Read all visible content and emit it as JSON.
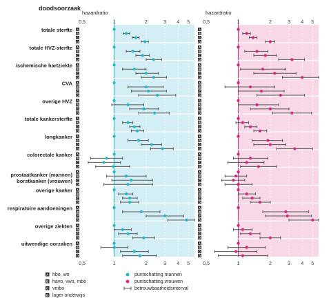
{
  "chart_data": {
    "type": "forest-plot",
    "row_header": "doodsoorzaak",
    "x_axis_label": "hazardratio",
    "x_scale": "log",
    "x_ticks": [
      "0,5",
      "1",
      "2",
      "3",
      "4",
      "5"
    ],
    "x_tick_values": [
      0.5,
      1,
      2,
      3,
      4,
      5
    ],
    "x_range": [
      0.47,
      5.7
    ],
    "reference_line": 1,
    "group_letters": [
      "A",
      "B",
      "C",
      "D"
    ],
    "panels": [
      {
        "name": "puntschatting mannen",
        "color": "#1fb8c9",
        "background": "#d4eef6"
      },
      {
        "name": "puntschatting vrouwen",
        "color": "#d8247c",
        "background": "#f8d7e6"
      }
    ],
    "ci_color": "#555555",
    "legend": {
      "groups": [
        {
          "letter": "A",
          "label": "hbo, wo"
        },
        {
          "letter": "B",
          "label": "havo, vwo, mbo"
        },
        {
          "letter": "C",
          "label": "vmbo"
        },
        {
          "letter": "D",
          "label": "lager onderwijs"
        }
      ],
      "marks": [
        {
          "kind": "dot-men",
          "label": "puntschatting mannen"
        },
        {
          "kind": "dot-women",
          "label": "puntschatting vrouwen"
        },
        {
          "kind": "interval",
          "label": "betrouwbaarheidsinterval"
        }
      ]
    },
    "categories": [
      {
        "label": "totale sterfte",
        "men": [
          [
            1,
            1,
            1
          ],
          [
            1.3,
            1.22,
            1.4
          ],
          [
            1.6,
            1.48,
            1.72
          ],
          [
            1.95,
            1.8,
            2.1
          ]
        ],
        "women": [
          [
            1,
            1,
            1
          ],
          [
            1.2,
            1.1,
            1.3
          ],
          [
            1.38,
            1.27,
            1.5
          ],
          [
            2.0,
            1.8,
            2.2
          ]
        ]
      },
      {
        "label": "totale HVZ-sterfte",
        "men": [
          [
            1,
            1,
            1
          ],
          [
            1.5,
            1.3,
            1.75
          ],
          [
            1.85,
            1.6,
            2.15
          ],
          [
            2.35,
            2.0,
            2.8
          ]
        ],
        "women": [
          [
            1,
            1,
            1
          ],
          [
            1.5,
            1.15,
            1.9
          ],
          [
            1.8,
            1.4,
            2.3
          ],
          [
            3.2,
            2.4,
            4.2
          ]
        ]
      },
      {
        "label": "ischemische hartziekte",
        "men": [
          [
            1,
            1,
            1
          ],
          [
            1.55,
            1.2,
            2.0
          ],
          [
            2.0,
            1.6,
            2.6
          ],
          [
            2.35,
            1.8,
            3.1
          ]
        ],
        "women": [
          [
            1,
            1,
            1
          ],
          [
            1.7,
            1.05,
            2.8
          ],
          [
            2.2,
            1.4,
            3.5
          ],
          [
            4.0,
            2.6,
            6.0
          ]
        ]
      },
      {
        "label": "CVA",
        "men": [
          [
            1,
            1,
            1
          ],
          [
            2.0,
            1.35,
            2.9
          ],
          [
            2.1,
            1.45,
            3.1
          ],
          [
            2.55,
            1.7,
            3.8
          ]
        ],
        "women": [
          [
            1,
            1,
            1
          ],
          [
            1.3,
            0.75,
            2.2
          ],
          [
            1.65,
            1.0,
            2.7
          ],
          [
            2.5,
            1.5,
            4.2
          ]
        ]
      },
      {
        "label": "overige HVZ",
        "men": [
          [
            1,
            1,
            1
          ],
          [
            1.35,
            0.95,
            1.9
          ],
          [
            1.9,
            1.4,
            2.6
          ],
          [
            2.4,
            1.7,
            3.3
          ]
        ],
        "women": [
          [
            1,
            1,
            1
          ],
          [
            1.5,
            1.0,
            2.4
          ],
          [
            2.0,
            1.3,
            3.0
          ],
          [
            3.2,
            2.1,
            4.9
          ]
        ]
      },
      {
        "label": "totale kankersterfte",
        "men": [
          [
            1,
            1,
            1
          ],
          [
            1.35,
            1.2,
            1.5
          ],
          [
            1.55,
            1.4,
            1.75
          ],
          [
            1.65,
            1.45,
            1.9
          ]
        ],
        "women": [
          [
            1,
            1,
            1
          ],
          [
            1.1,
            0.95,
            1.25
          ],
          [
            1.3,
            1.15,
            1.5
          ],
          [
            1.6,
            1.4,
            1.85
          ]
        ]
      },
      {
        "label": "longkanker",
        "men": [
          [
            1,
            1,
            1
          ],
          [
            1.7,
            1.35,
            2.1
          ],
          [
            2.25,
            1.8,
            2.8
          ],
          [
            2.85,
            2.2,
            3.6
          ]
        ],
        "women": [
          [
            1,
            1,
            1
          ],
          [
            1.9,
            1.35,
            2.6
          ],
          [
            2.0,
            1.4,
            2.8
          ],
          [
            3.4,
            2.3,
            5.0
          ]
        ]
      },
      {
        "label": "colorectale kanker",
        "men": [
          [
            1,
            1,
            1
          ],
          [
            0.85,
            0.6,
            1.2
          ],
          [
            0.8,
            0.57,
            1.15
          ],
          [
            0.98,
            0.67,
            1.4
          ]
        ],
        "women": [
          [
            1,
            1,
            1
          ],
          [
            1.3,
            0.9,
            1.9
          ],
          [
            1.2,
            0.8,
            1.75
          ],
          [
            1.55,
            1.05,
            2.3
          ]
        ]
      },
      {
        "label": "prostaatkanker (mannen)",
        "label2": "borstkanker (vrouwen)",
        "men": [
          [
            1,
            1,
            1
          ],
          [
            1.3,
            0.85,
            2.0
          ],
          [
            1.45,
            0.95,
            2.3
          ],
          [
            1.35,
            0.8,
            2.3
          ]
        ],
        "women": [
          [
            1,
            1,
            1
          ],
          [
            0.95,
            0.75,
            1.2
          ],
          [
            0.9,
            0.7,
            1.15
          ],
          [
            1.0,
            0.75,
            1.35
          ]
        ]
      },
      {
        "label": "overige kanker",
        "men": [
          [
            1,
            1,
            1
          ],
          [
            1.3,
            1.1,
            1.5
          ],
          [
            1.4,
            1.2,
            1.65
          ],
          [
            1.4,
            1.15,
            1.7
          ]
        ],
        "women": [
          [
            1,
            1,
            1
          ],
          [
            1.2,
            1.0,
            1.45
          ],
          [
            1.35,
            1.1,
            1.6
          ],
          [
            1.6,
            1.3,
            2.0
          ]
        ]
      },
      {
        "label": "respiratoire aandoeningen",
        "men": [
          [
            1,
            1,
            1
          ],
          [
            1.8,
            1.2,
            2.7
          ],
          [
            3.0,
            2.0,
            4.5
          ],
          [
            4.8,
            3.2,
            7.0
          ]
        ],
        "women": [
          [
            1,
            1,
            1
          ],
          [
            2.8,
            1.7,
            4.6
          ],
          [
            2.9,
            1.8,
            4.9
          ],
          [
            5.0,
            3.0,
            8.0
          ]
        ]
      },
      {
        "label": "overige ziekten",
        "men": [
          [
            1,
            1,
            1
          ],
          [
            1.2,
            1.0,
            1.45
          ],
          [
            1.35,
            1.1,
            1.65
          ],
          [
            1.9,
            1.5,
            2.4
          ]
        ],
        "women": [
          [
            1,
            1,
            1
          ],
          [
            1.1,
            0.9,
            1.35
          ],
          [
            1.3,
            1.05,
            1.6
          ],
          [
            2.0,
            1.6,
            2.5
          ]
        ]
      },
      {
        "label": "uitwendige oorzaken",
        "men": [
          [
            1,
            1,
            1
          ],
          [
            1.0,
            0.75,
            1.35
          ],
          [
            1.55,
            1.15,
            2.1
          ],
          [
            1.75,
            1.2,
            2.5
          ]
        ],
        "women": [
          [
            1,
            1,
            1
          ],
          [
            1.2,
            0.8,
            1.8
          ],
          [
            0.95,
            0.6,
            1.5
          ],
          [
            1.1,
            0.65,
            1.9
          ]
        ]
      }
    ]
  }
}
